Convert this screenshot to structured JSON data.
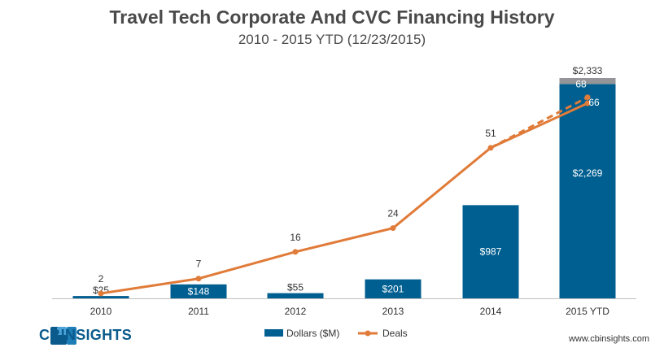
{
  "chart_data": {
    "type": "bar",
    "title": "Travel Tech Corporate And CVC Financing History",
    "subtitle": "2010 - 2015 YTD (12/23/2015)",
    "categories": [
      "2010",
      "2011",
      "2012",
      "2013",
      "2014",
      "2015 YTD"
    ],
    "series": [
      {
        "name": "Dollars ($M)",
        "type": "bar",
        "color": "#005f91",
        "values": [
          25,
          148,
          55,
          201,
          987,
          2269
        ],
        "labels": [
          "$25",
          "$148",
          "$55",
          "$201",
          "$987",
          "$2,269"
        ]
      },
      {
        "name": "Deals",
        "type": "line",
        "color": "#e07b39",
        "values": [
          2,
          7,
          16,
          24,
          51,
          66
        ]
      }
    ],
    "stacked_extra": {
      "category": "2015 YTD",
      "value": 64,
      "color": "#939598",
      "total_label": "$2,333"
    },
    "projection": {
      "type": "dashed-line",
      "from": {
        "category": "2014",
        "value": 51
      },
      "to": {
        "category": "2015 YTD",
        "value": 68
      },
      "label": "68"
    },
    "ylim_dollars": [
      0,
      2333
    ],
    "ylim_deals": [
      0,
      68
    ],
    "legend": {
      "placement": "bottom-center",
      "items": [
        "Dollars ($M)",
        "Deals"
      ]
    },
    "grid": false
  },
  "branding": {
    "logo_text": "CBINSIGHTS",
    "website": "www.cbinsights.com"
  }
}
